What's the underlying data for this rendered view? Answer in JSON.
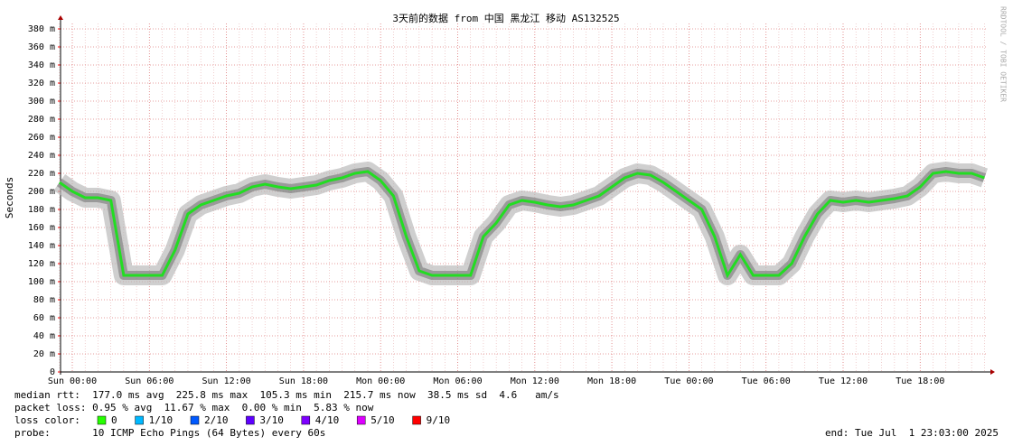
{
  "chart_data": {
    "type": "line",
    "title": "3天前的数据 from 中国 黑龙江 移动 AS132525",
    "ylabel": "Seconds",
    "watermark": "RRDTOOL / TOBI OETIKER",
    "x_labels": [
      "Sun 00:00",
      "Sun 06:00",
      "Sun 12:00",
      "Sun 18:00",
      "Mon 00:00",
      "Mon 06:00",
      "Mon 12:00",
      "Mon 18:00",
      "Tue 00:00",
      "Tue 06:00",
      "Tue 12:00",
      "Tue 18:00"
    ],
    "ylim": [
      0,
      0.382
    ],
    "yticks": [
      0,
      {
        "value": 0.02,
        "label": "20 m"
      },
      {
        "value": 0.04,
        "label": "40 m"
      },
      {
        "value": 0.06,
        "label": "60 m"
      },
      {
        "value": 0.08,
        "label": "80 m"
      },
      {
        "value": 0.1,
        "label": "100 m"
      },
      {
        "value": 0.12,
        "label": "120 m"
      },
      {
        "value": 0.14,
        "label": "140 m"
      },
      {
        "value": 0.16,
        "label": "160 m"
      },
      {
        "value": 0.18,
        "label": "180 m"
      },
      {
        "value": 0.2,
        "label": "200 m"
      },
      {
        "value": 0.22,
        "label": "220 m"
      },
      {
        "value": 0.24,
        "label": "240 m"
      },
      {
        "value": 0.26,
        "label": "260 m"
      },
      {
        "value": 0.28,
        "label": "280 m"
      },
      {
        "value": 0.3,
        "label": "300 m"
      },
      {
        "value": 0.32,
        "label": "320 m"
      },
      {
        "value": 0.34,
        "label": "340 m"
      },
      {
        "value": 0.36,
        "label": "360 m"
      },
      {
        "value": 0.38,
        "label": "380 m"
      }
    ],
    "grid": true,
    "series": [
      {
        "name": "median rtt",
        "color": "#22dd22",
        "values": [
          0.21,
          0.2,
          0.193,
          0.193,
          0.19,
          0.107,
          0.107,
          0.107,
          0.107,
          0.135,
          0.175,
          0.185,
          0.19,
          0.195,
          0.198,
          0.205,
          0.208,
          0.205,
          0.203,
          0.205,
          0.207,
          0.212,
          0.215,
          0.22,
          0.222,
          0.212,
          0.195,
          0.15,
          0.112,
          0.107,
          0.107,
          0.107,
          0.107,
          0.15,
          0.165,
          0.185,
          0.19,
          0.188,
          0.185,
          0.183,
          0.185,
          0.19,
          0.195,
          0.205,
          0.215,
          0.22,
          0.218,
          0.21,
          0.2,
          0.19,
          0.18,
          0.15,
          0.107,
          0.13,
          0.107,
          0.107,
          0.107,
          0.12,
          0.15,
          0.175,
          0.19,
          0.188,
          0.19,
          0.188,
          0.19,
          0.192,
          0.195,
          0.205,
          0.22,
          0.222,
          0.22,
          0.22,
          0.215
        ]
      }
    ],
    "stats": [
      "median rtt:  177.0 ms avg  225.8 ms max  105.3 ms min  215.7 ms now  38.5 ms sd  4.6   am/s",
      "packet loss: 0.95 % avg  11.67 % max  0.00 % min  5.83 % now"
    ],
    "loss_label": "loss color:",
    "loss_colors": [
      {
        "name": "0",
        "color": "#26ff00"
      },
      {
        "name": "1/10",
        "color": "#00b8ff"
      },
      {
        "name": "2/10",
        "color": "#0059ff"
      },
      {
        "name": "3/10",
        "color": "#5e00ff"
      },
      {
        "name": "4/10",
        "color": "#7e00ff"
      },
      {
        "name": "5/10",
        "color": "#dd00ff"
      },
      {
        "name": "9/10",
        "color": "#ff0000"
      }
    ],
    "probe": "probe:       10 ICMP Echo Pings (64 Bytes) every 60s",
    "end": "end: Tue Jul  1 23:03:00 2025"
  }
}
